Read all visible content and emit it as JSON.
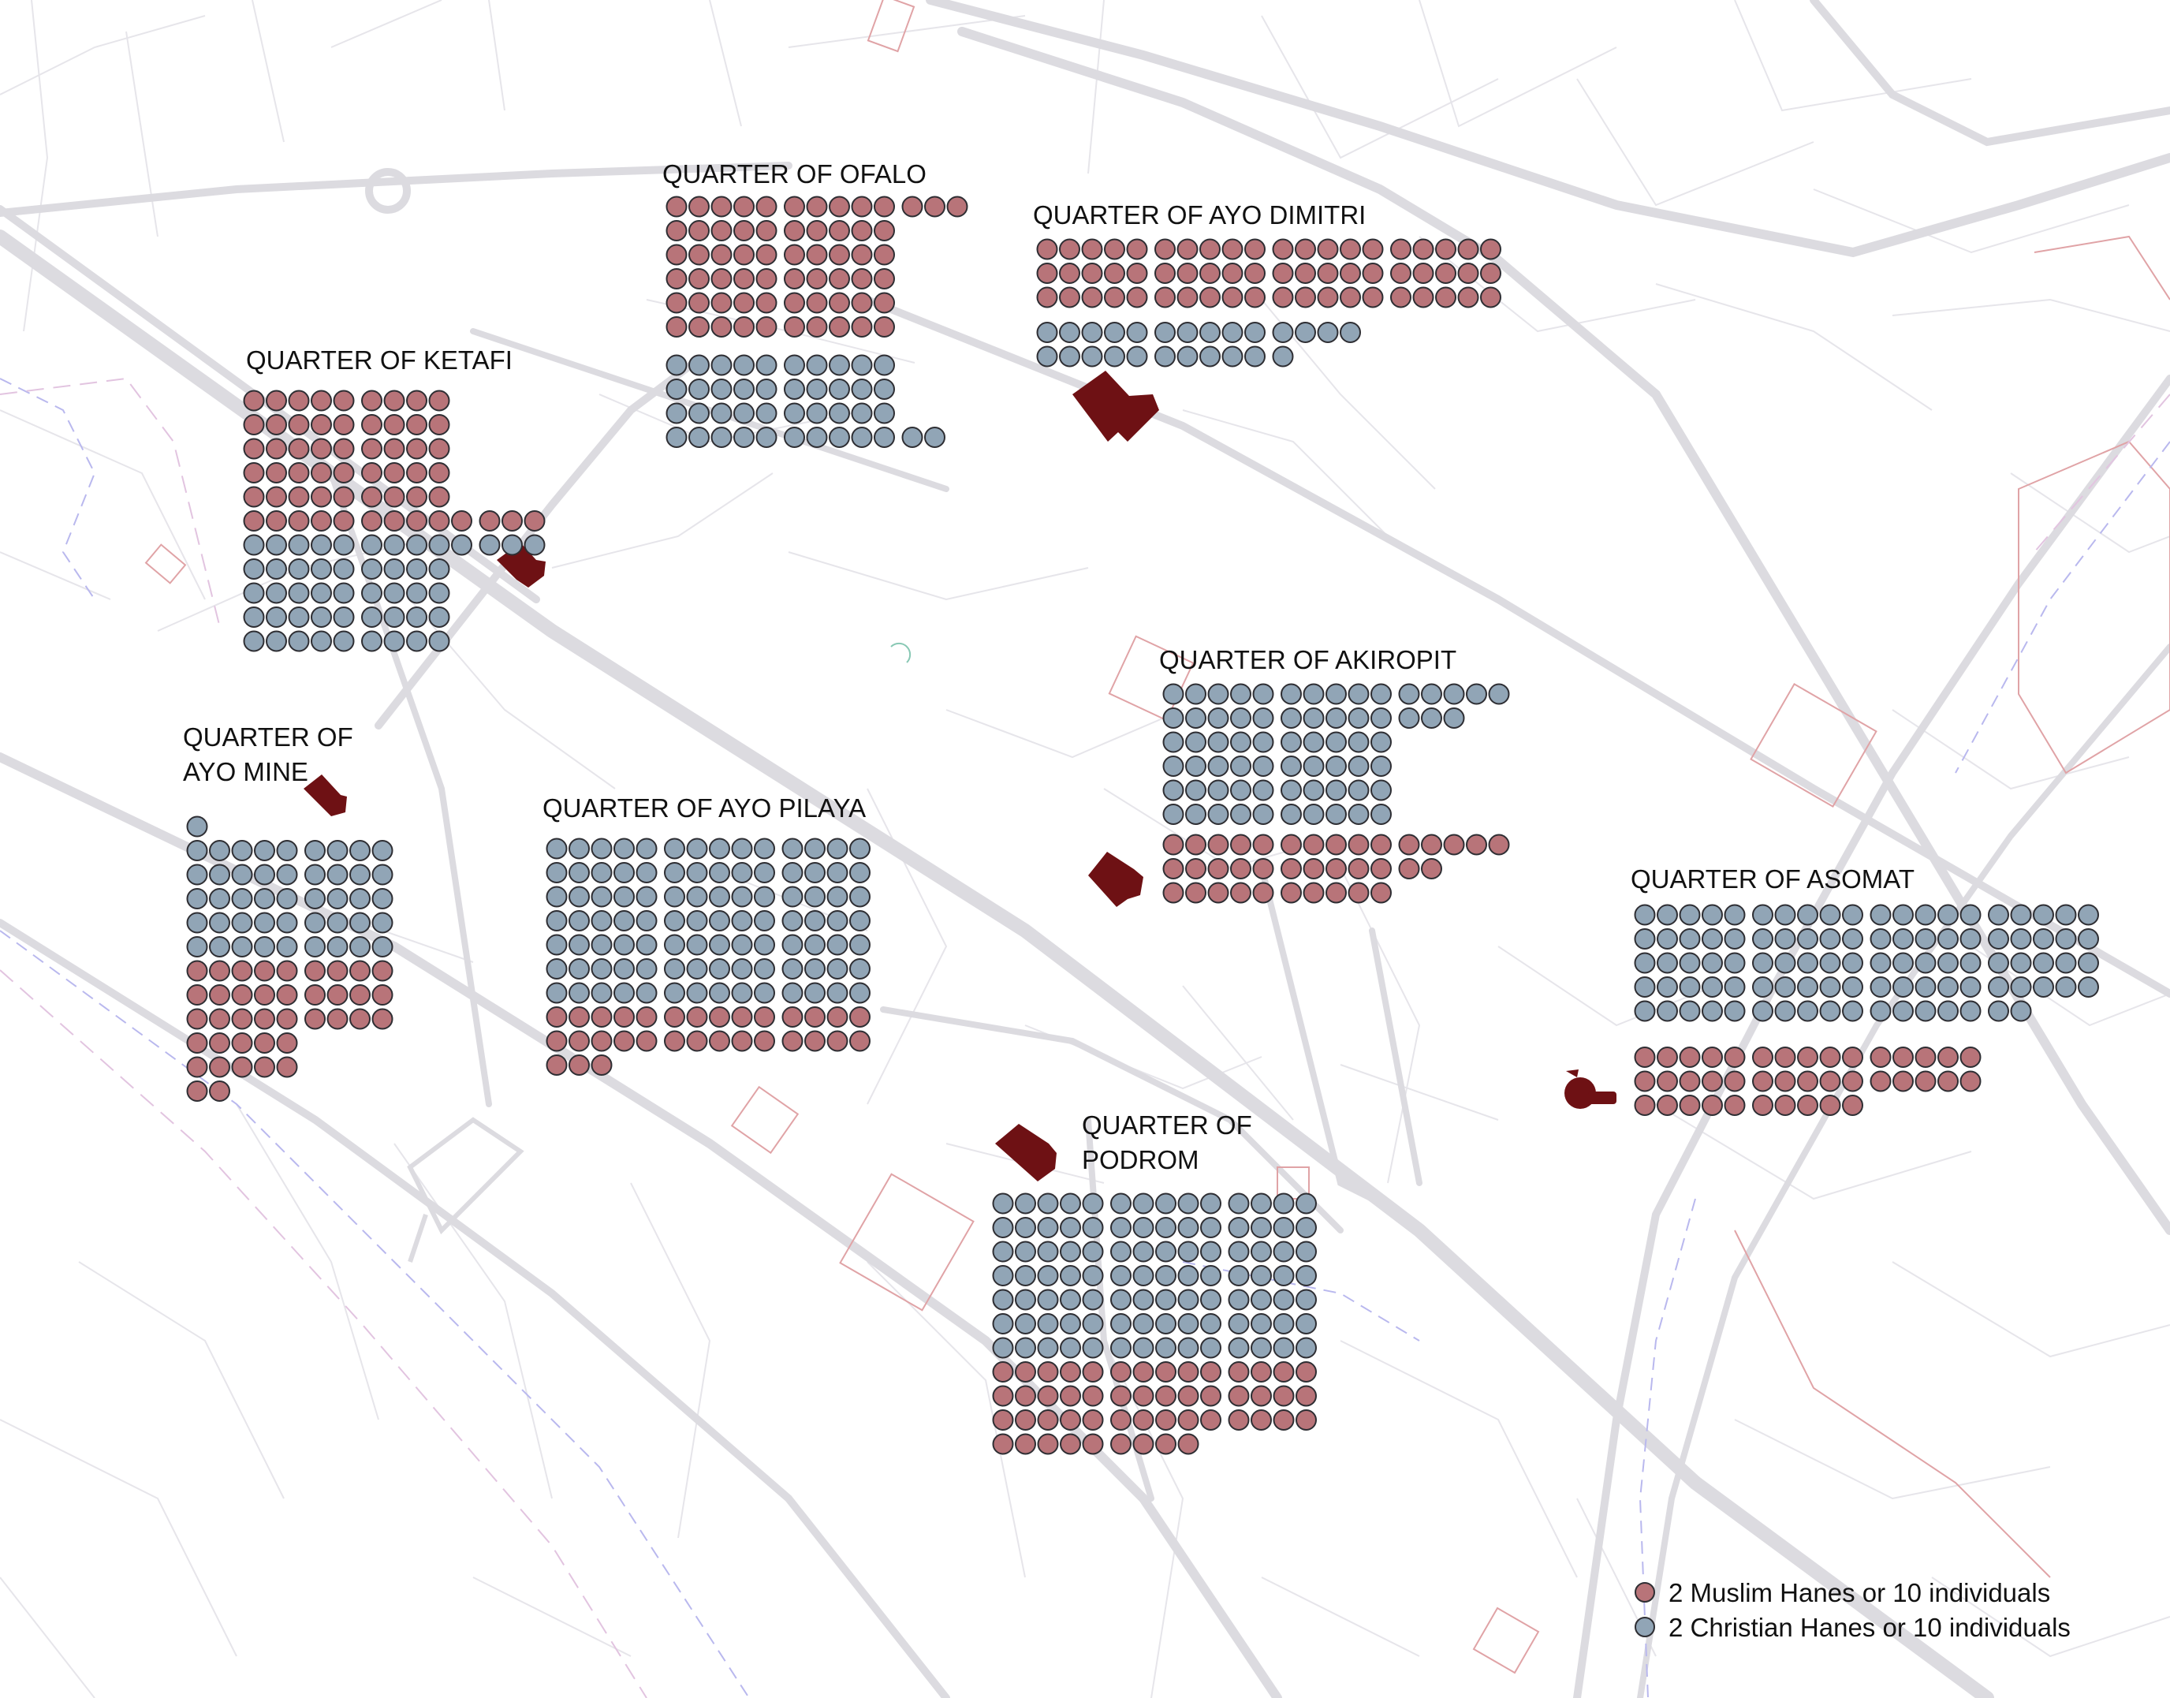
{
  "colors": {
    "muslim": "#b87479",
    "christian": "#91a5b6",
    "dot_stroke": "#2e2e33",
    "landmark": "#6e1114",
    "road": "#dcdbe0",
    "minor_road": "#e6e5ea",
    "building_outline": "#e0a3a6",
    "boundary_dash": "#b9b8ee"
  },
  "legend": {
    "muslim_label": "2 Muslim Hanes or 10 individuals",
    "christian_label": "2 Christian Hanes or 10 individuals"
  },
  "quarters": [
    {
      "id": "ofalo",
      "label_lines": [
        "QUARTER OF OFALO"
      ],
      "muslim_rows": [
        13,
        10,
        10,
        10,
        10,
        10
      ],
      "christian_rows": [
        10,
        10,
        10,
        12
      ]
    },
    {
      "id": "ayo-dimitri",
      "label_lines": [
        "QUARTER OF AYO DIMITRI"
      ],
      "muslim_rows": [
        20,
        20,
        20
      ],
      "christian_rows": [
        14,
        11
      ]
    },
    {
      "id": "ketafi",
      "label_lines": [
        "QUARTER OF KETAFI"
      ],
      "muslim_rows": [
        9,
        9,
        9,
        9,
        9,
        13
      ],
      "christian_rows": [
        13,
        9,
        9,
        9,
        9
      ]
    },
    {
      "id": "ayo-mine",
      "label_lines": [
        "QUARTER OF",
        "AYO MINE"
      ],
      "muslim_rows": [
        9,
        9,
        9,
        5,
        5,
        2
      ],
      "christian_rows": [
        1,
        9,
        9,
        9,
        9,
        9
      ]
    },
    {
      "id": "ayo-pilaya",
      "label_lines": [
        "QUARTER OF AYO PILAYA"
      ],
      "muslim_rows": [
        14,
        14,
        3
      ],
      "christian_rows": [
        14,
        14,
        14,
        14,
        14,
        14,
        14
      ]
    },
    {
      "id": "akiropit",
      "label_lines": [
        "QUARTER OF AKIROPIT"
      ],
      "muslim_rows": [
        15,
        12,
        10
      ],
      "christian_rows": [
        15,
        13,
        10,
        10,
        10,
        10
      ]
    },
    {
      "id": "asomat",
      "label_lines": [
        "QUARTER OF ASOMAT"
      ],
      "muslim_rows": [
        15,
        15,
        10
      ],
      "christian_rows": [
        20,
        20,
        20,
        20,
        17
      ]
    },
    {
      "id": "podrom",
      "label_lines": [
        "QUARTER OF",
        "PODROM"
      ],
      "muslim_rows": [
        14,
        14,
        14,
        9
      ],
      "christian_rows": [
        14,
        14,
        14,
        14,
        14,
        14,
        14
      ]
    }
  ]
}
